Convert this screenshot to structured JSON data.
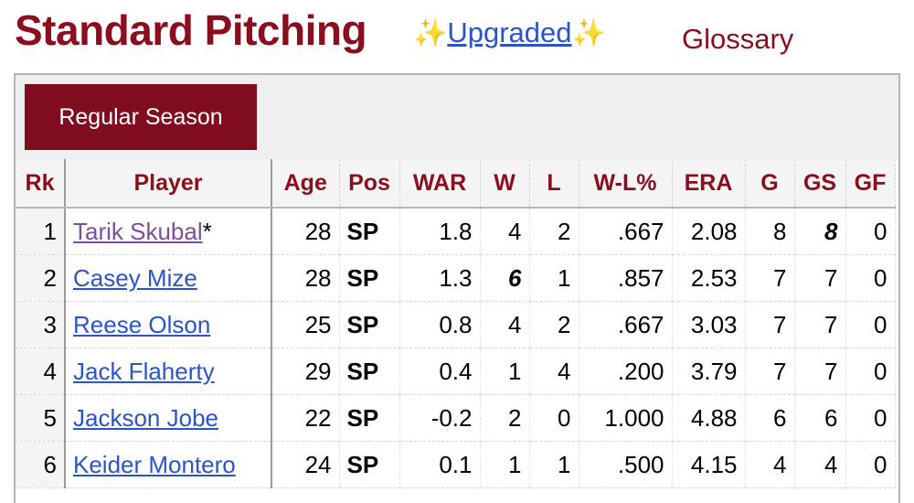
{
  "header": {
    "title": "Standard Pitching",
    "sparkle": "✨",
    "upgraded_label": "Upgraded",
    "glossary_label": "Glossary"
  },
  "tabs": {
    "regular_season": "Regular Season"
  },
  "table": {
    "columns": [
      "Rk",
      "Player",
      "Age",
      "Pos",
      "WAR",
      "W",
      "L",
      "W-L%",
      "ERA",
      "G",
      "GS",
      "GF"
    ],
    "rows": [
      {
        "rk": "1",
        "player": "Tarik Skubal",
        "marker": "*",
        "age": "28",
        "pos": "SP",
        "war": "1.8",
        "w": "4",
        "l": "2",
        "wl": ".667",
        "era": "2.08",
        "g": "8",
        "gs": "8",
        "gf": "0"
      },
      {
        "rk": "2",
        "player": "Casey Mize",
        "marker": "",
        "age": "28",
        "pos": "SP",
        "war": "1.3",
        "w": "6",
        "l": "1",
        "wl": ".857",
        "era": "2.53",
        "g": "7",
        "gs": "7",
        "gf": "0"
      },
      {
        "rk": "3",
        "player": "Reese Olson",
        "marker": "",
        "age": "25",
        "pos": "SP",
        "war": "0.8",
        "w": "4",
        "l": "2",
        "wl": ".667",
        "era": "3.03",
        "g": "7",
        "gs": "7",
        "gf": "0"
      },
      {
        "rk": "4",
        "player": "Jack Flaherty",
        "marker": "",
        "age": "29",
        "pos": "SP",
        "war": "0.4",
        "w": "1",
        "l": "4",
        "wl": ".200",
        "era": "3.79",
        "g": "7",
        "gs": "7",
        "gf": "0"
      },
      {
        "rk": "5",
        "player": "Jackson Jobe",
        "marker": "",
        "age": "22",
        "pos": "SP",
        "war": "-0.2",
        "w": "2",
        "l": "0",
        "wl": "1.000",
        "era": "4.88",
        "g": "6",
        "gs": "6",
        "gf": "0"
      },
      {
        "rk": "6",
        "player": "Keider Montero",
        "marker": "",
        "age": "24",
        "pos": "SP",
        "war": "0.1",
        "w": "1",
        "l": "1",
        "wl": ".500",
        "era": "4.15",
        "g": "4",
        "gs": "4",
        "gf": "0"
      }
    ]
  },
  "colors": {
    "brand_red": "#8b0e1e",
    "tab_red": "#800d1f",
    "link_blue": "#2b54c9",
    "link_visited": "#7b4f9d",
    "sparkle": "#f2c200"
  }
}
